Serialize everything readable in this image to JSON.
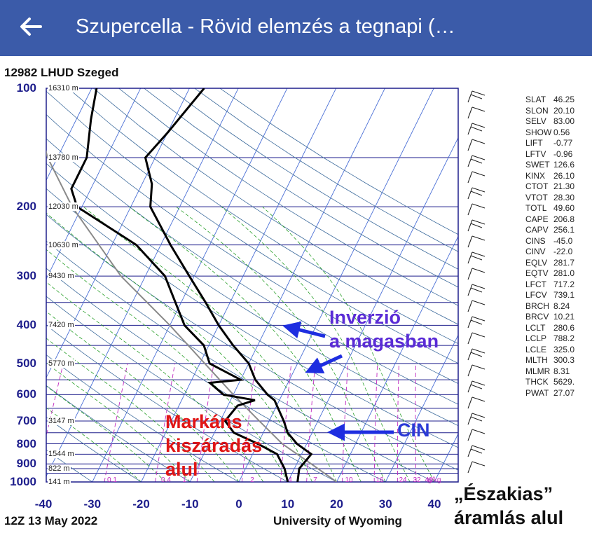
{
  "header": {
    "title": "Szupercella - Rövid elemzés a tegnapi (…",
    "back_icon": "arrow-left-icon",
    "bar_color": "#3b5ba9"
  },
  "station": "12982 LHUD Szeged",
  "footer": {
    "date": "12Z 13 May 2022",
    "source": "University of Wyoming"
  },
  "north_note": {
    "line1": "„Északias”",
    "line2": "áramlás alul"
  },
  "annotations": {
    "inversion_l1": "Inverzió",
    "inversion_l2": "a magasban",
    "cin": "CIN",
    "dry_l1": "Markáns",
    "dry_l2": "kiszáradás",
    "dry_l3": "alul",
    "colors": {
      "inversion": "#5a2bd6",
      "cin": "#2b3ad6",
      "dry": "#e01515",
      "arrow": "#1e2ee0"
    }
  },
  "indices": [
    {
      "k": "SLAT",
      "v": "46.25"
    },
    {
      "k": "SLON",
      "v": "20.10"
    },
    {
      "k": "SELV",
      "v": "83.00"
    },
    {
      "k": "SHOW",
      "v": "0.56"
    },
    {
      "k": "LIFT",
      "v": "-0.77"
    },
    {
      "k": "LFTV",
      "v": "-0.96"
    },
    {
      "k": "SWET",
      "v": "126.6"
    },
    {
      "k": "KINX",
      "v": "26.10"
    },
    {
      "k": "CTOT",
      "v": "21.30"
    },
    {
      "k": "VTOT",
      "v": "28.30"
    },
    {
      "k": "TOTL",
      "v": "49.60"
    },
    {
      "k": "CAPE",
      "v": "206.8"
    },
    {
      "k": "CAPV",
      "v": "256.1"
    },
    {
      "k": "CINS",
      "v": "-45.0"
    },
    {
      "k": "CINV",
      "v": "-22.0"
    },
    {
      "k": "EQLV",
      "v": "281.7"
    },
    {
      "k": "EQTV",
      "v": "281.0"
    },
    {
      "k": "LFCT",
      "v": "717.2"
    },
    {
      "k": "LFCV",
      "v": "739.1"
    },
    {
      "k": "BRCH",
      "v": "8.24"
    },
    {
      "k": "BRCV",
      "v": "10.21"
    },
    {
      "k": "LCLT",
      "v": "280.6"
    },
    {
      "k": "LCLP",
      "v": "788.2"
    },
    {
      "k": "LCLE",
      "v": "325.0"
    },
    {
      "k": "MLTH",
      "v": "300.3"
    },
    {
      "k": "MLMR",
      "v": "8.31"
    },
    {
      "k": "THCK",
      "v": "5629."
    },
    {
      "k": "PWAT",
      "v": "27.07"
    }
  ],
  "chart_data": {
    "type": "line",
    "subtype": "skew-T log-p sounding",
    "pressure_levels_hPa": [
      100,
      200,
      300,
      400,
      500,
      600,
      700,
      800,
      900,
      1000
    ],
    "pressure_labels": [
      "100",
      "200",
      "300",
      "400",
      "500",
      "600",
      "700",
      "800",
      "900",
      "1000"
    ],
    "temperature_ticks_C": [
      -40,
      -30,
      -20,
      -10,
      0,
      10,
      20,
      30,
      40
    ],
    "temperature_labels": [
      "-40",
      "-30",
      "-20",
      "-10",
      "0",
      "10",
      "20",
      "30",
      "40"
    ],
    "heights": [
      {
        "p": 100,
        "label": "16310 m"
      },
      {
        "p": 150,
        "label": "13780 m"
      },
      {
        "p": 200,
        "label": "12030 m"
      },
      {
        "p": 250,
        "label": "10630 m"
      },
      {
        "p": 300,
        "label": "9430 m"
      },
      {
        "p": 400,
        "label": "7420 m"
      },
      {
        "p": 500,
        "label": "5770 m"
      },
      {
        "p": 700,
        "label": "3147 m"
      },
      {
        "p": 850,
        "label": "1544 m"
      },
      {
        "p": 925,
        "label": "822 m"
      },
      {
        "p": 1000,
        "label": "141 m"
      }
    ],
    "mixing_ratio_labels": [
      "0.1",
      "0.4",
      "1",
      "2",
      "4",
      "7",
      "10",
      "16",
      "24",
      "32",
      "40",
      "g/kg"
    ],
    "temperature_profile": [
      {
        "p": 1000,
        "t": 12
      },
      {
        "p": 925,
        "t": 11
      },
      {
        "p": 850,
        "t": 12
      },
      {
        "p": 800,
        "t": 8
      },
      {
        "p": 750,
        "t": 5
      },
      {
        "p": 700,
        "t": 3
      },
      {
        "p": 620,
        "t": -1
      },
      {
        "p": 600,
        "t": -3
      },
      {
        "p": 550,
        "t": -7
      },
      {
        "p": 500,
        "t": -10
      },
      {
        "p": 450,
        "t": -15
      },
      {
        "p": 400,
        "t": -20
      },
      {
        "p": 350,
        "t": -25
      },
      {
        "p": 300,
        "t": -31
      },
      {
        "p": 250,
        "t": -38
      },
      {
        "p": 200,
        "t": -46
      },
      {
        "p": 175,
        "t": -48
      },
      {
        "p": 150,
        "t": -52
      },
      {
        "p": 130,
        "t": -50
      },
      {
        "p": 100,
        "t": -47
      }
    ],
    "dewpoint_profile": [
      {
        "p": 1000,
        "t": 10
      },
      {
        "p": 925,
        "t": 8
      },
      {
        "p": 850,
        "t": 5
      },
      {
        "p": 800,
        "t": 0
      },
      {
        "p": 750,
        "t": -6
      },
      {
        "p": 700,
        "t": -9
      },
      {
        "p": 640,
        "t": -8
      },
      {
        "p": 620,
        "t": -5
      },
      {
        "p": 600,
        "t": -12
      },
      {
        "p": 560,
        "t": -16
      },
      {
        "p": 550,
        "t": -10
      },
      {
        "p": 500,
        "t": -18
      },
      {
        "p": 450,
        "t": -21
      },
      {
        "p": 400,
        "t": -27
      },
      {
        "p": 300,
        "t": -36
      },
      {
        "p": 250,
        "t": -45
      },
      {
        "p": 200,
        "t": -61
      },
      {
        "p": 180,
        "t": -64
      },
      {
        "p": 150,
        "t": -64
      },
      {
        "p": 120,
        "t": -67
      },
      {
        "p": 100,
        "t": -69
      }
    ],
    "parcel_profile": [
      {
        "p": 1000,
        "t": 20
      },
      {
        "p": 900,
        "t": 13
      },
      {
        "p": 800,
        "t": 5
      },
      {
        "p": 700,
        "t": -2
      },
      {
        "p": 600,
        "t": -10
      },
      {
        "p": 500,
        "t": -19
      },
      {
        "p": 400,
        "t": -30
      },
      {
        "p": 300,
        "t": -45
      },
      {
        "p": 200,
        "t": -62
      },
      {
        "p": 150,
        "t": -72
      },
      {
        "p": 100,
        "t": -83
      }
    ],
    "x_range_C": [
      -40,
      45
    ],
    "y_range_hPa": [
      1000,
      100
    ],
    "colors": {
      "isobar": "#1e1e8c",
      "isotherm": "#4a6fd6",
      "dry_adiabat": "#3d6b9c",
      "moist_adiabat": "#2aa02a",
      "mixing_ratio": "#c02ac0",
      "profile": "#000000",
      "parcel": "#8a8a8a"
    }
  }
}
